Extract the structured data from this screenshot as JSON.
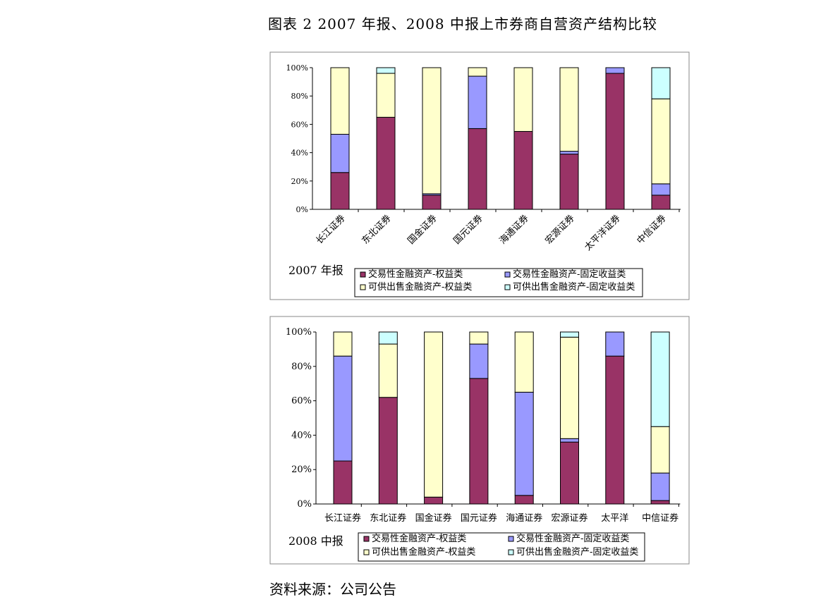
{
  "page": {
    "title": "图表 2 2007 年报、2008 中报上市券商自营资产结构比较",
    "source": "资料来源：公司公告"
  },
  "colors": {
    "trading_equity": "#993366",
    "trading_fixed": "#9999FF",
    "afs_equity": "#FFFFCC",
    "afs_fixed": "#CCFFFF",
    "frame": "#000000"
  },
  "chart_data": [
    {
      "type": "bar",
      "stacked": true,
      "period_label": "2007 年报",
      "categories": [
        "长江证券",
        "东北证券",
        "国金证券",
        "国元证券",
        "海通证券",
        "宏源证券",
        "太平洋证券",
        "中信证券"
      ],
      "y_tick_labels": [
        "0%",
        "20%",
        "40%",
        "60%",
        "80%",
        "100%"
      ],
      "ylim": [
        0,
        100
      ],
      "grid": false,
      "legend_position": "bottom",
      "series": [
        {
          "name": "交易性金融资产-权益类",
          "color": "#993366",
          "values": [
            26,
            65,
            10,
            57,
            55,
            39,
            96,
            10
          ]
        },
        {
          "name": "交易性金融资产-固定收益类",
          "color": "#9999FF",
          "values": [
            27,
            0,
            1,
            37,
            0,
            2,
            4,
            8
          ]
        },
        {
          "name": "可供出售金融资产-权益类",
          "color": "#FFFFCC",
          "values": [
            47,
            31,
            89,
            6,
            45,
            59,
            0,
            60
          ]
        },
        {
          "name": "可供出售金融资产-固定收益类",
          "color": "#CCFFFF",
          "values": [
            0,
            4,
            0,
            0,
            0,
            0,
            0,
            22
          ]
        }
      ]
    },
    {
      "type": "bar",
      "stacked": true,
      "period_label": "2008 中报",
      "categories": [
        "长江证券",
        "东北证券",
        "国金证券",
        "国元证券",
        "海通证券",
        "宏源证券",
        "太平洋",
        "中信证券"
      ],
      "y_tick_labels": [
        "0%",
        "20%",
        "40%",
        "60%",
        "80%",
        "100%"
      ],
      "ylim": [
        0,
        100
      ],
      "grid": false,
      "legend_position": "bottom",
      "series": [
        {
          "name": "交易性金融资产-权益类",
          "color": "#993366",
          "values": [
            25,
            62,
            4,
            73,
            5,
            36,
            86,
            2
          ]
        },
        {
          "name": "交易性金融资产-固定收益类",
          "color": "#9999FF",
          "values": [
            61,
            0,
            0,
            20,
            60,
            2,
            14,
            16
          ]
        },
        {
          "name": "可供出售金融资产-权益类",
          "color": "#FFFFCC",
          "values": [
            14,
            31,
            96,
            7,
            35,
            59,
            0,
            27
          ]
        },
        {
          "name": "可供出售金融资产-固定收益类",
          "color": "#CCFFFF",
          "values": [
            0,
            7,
            0,
            0,
            0,
            3,
            0,
            55
          ]
        }
      ]
    }
  ]
}
